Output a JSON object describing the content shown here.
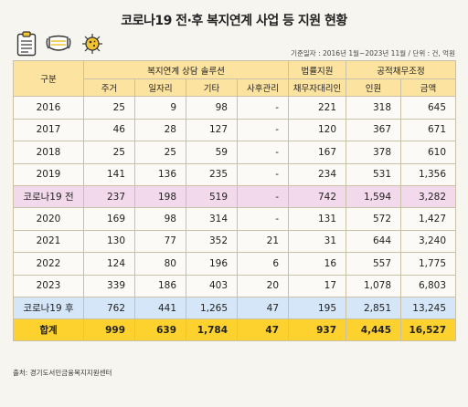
{
  "title": "코로나19 전·후 복지연계 사업 등 지원 현황",
  "base_info": "기준일자 : 2016년 1월~2023년 11월 / 단위 : 건, 억원",
  "source": "출처: 경기도서민금융복지지원센터",
  "icons": [
    "clipboard-icon",
    "face-mask-icon",
    "virus-icon"
  ],
  "header": {
    "category": "구분",
    "group_welfare": "복지연계 상담 솔루션",
    "group_legal": "법률지원",
    "group_debt": "공적채무조정",
    "housing": "주거",
    "jobs": "일자리",
    "other": "기타",
    "case_mgmt": "사후관리",
    "debtor_agent": "채무자대리인",
    "people": "인원",
    "amount": "금액"
  },
  "rows": [
    {
      "label": "2016",
      "housing": "25",
      "jobs": "9",
      "other": "98",
      "case_mgmt": "-",
      "debtor_agent": "221",
      "people": "318",
      "amount": "645"
    },
    {
      "label": "2017",
      "housing": "46",
      "jobs": "28",
      "other": "127",
      "case_mgmt": "-",
      "debtor_agent": "120",
      "people": "367",
      "amount": "671"
    },
    {
      "label": "2018",
      "housing": "25",
      "jobs": "25",
      "other": "59",
      "case_mgmt": "-",
      "debtor_agent": "167",
      "people": "378",
      "amount": "610"
    },
    {
      "label": "2019",
      "housing": "141",
      "jobs": "136",
      "other": "235",
      "case_mgmt": "-",
      "debtor_agent": "234",
      "people": "531",
      "amount": "1,356"
    },
    {
      "label": "코로나19 전",
      "housing": "237",
      "jobs": "198",
      "other": "519",
      "case_mgmt": "-",
      "debtor_agent": "742",
      "people": "1,594",
      "amount": "3,282"
    },
    {
      "label": "2020",
      "housing": "169",
      "jobs": "98",
      "other": "314",
      "case_mgmt": "-",
      "debtor_agent": "131",
      "people": "572",
      "amount": "1,427"
    },
    {
      "label": "2021",
      "housing": "130",
      "jobs": "77",
      "other": "352",
      "case_mgmt": "21",
      "debtor_agent": "31",
      "people": "644",
      "amount": "3,240"
    },
    {
      "label": "2022",
      "housing": "124",
      "jobs": "80",
      "other": "196",
      "case_mgmt": "6",
      "debtor_agent": "16",
      "people": "557",
      "amount": "1,775"
    },
    {
      "label": "2023",
      "housing": "339",
      "jobs": "186",
      "other": "403",
      "case_mgmt": "20",
      "debtor_agent": "17",
      "people": "1,078",
      "amount": "6,803"
    },
    {
      "label": "코로나19 후",
      "housing": "762",
      "jobs": "441",
      "other": "1,265",
      "case_mgmt": "47",
      "debtor_agent": "195",
      "people": "2,851",
      "amount": "13,245"
    },
    {
      "label": "합계",
      "housing": "999",
      "jobs": "639",
      "other": "1,784",
      "case_mgmt": "47",
      "debtor_agent": "937",
      "people": "4,445",
      "amount": "16,527"
    }
  ]
}
